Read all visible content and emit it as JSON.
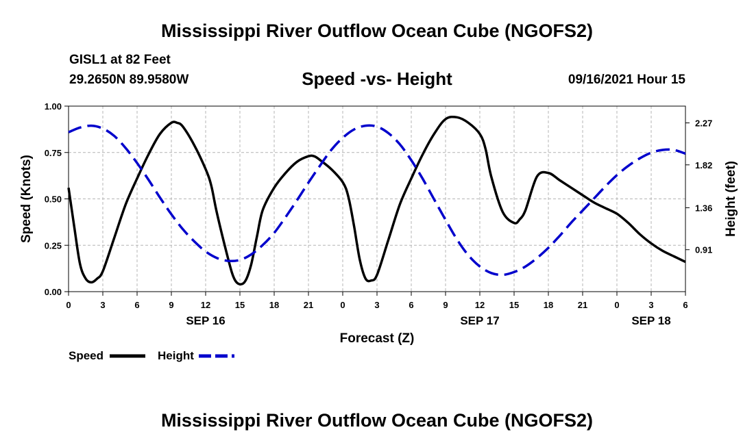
{
  "header": {
    "title": "Mississippi River Outflow Ocean Cube (NGOFS2)",
    "station": "GISL1 at 82 Feet",
    "coords": "29.2650N  89.9580W",
    "chart_title": "Speed -vs- Height",
    "datetime": "09/16/2021 Hour 15"
  },
  "footer": {
    "title": "Mississippi River Outflow Ocean Cube (NGOFS2)"
  },
  "colors": {
    "speed": "#000000",
    "height": "#0000cc",
    "grid": "#b4b4b4"
  },
  "chart_data": {
    "type": "line",
    "title": "Speed -vs- Height",
    "xlabel": "Forecast (Z)",
    "ylabel_left": "Speed (Knots)",
    "ylabel_right": "Height (feet)",
    "x_range_hours": [
      0,
      54
    ],
    "x_ticks": [
      {
        "h": 0,
        "label": "0"
      },
      {
        "h": 3,
        "label": "3"
      },
      {
        "h": 6,
        "label": "6"
      },
      {
        "h": 9,
        "label": "9"
      },
      {
        "h": 12,
        "label": "12"
      },
      {
        "h": 15,
        "label": "15"
      },
      {
        "h": 18,
        "label": "18"
      },
      {
        "h": 21,
        "label": "21"
      },
      {
        "h": 24,
        "label": "0"
      },
      {
        "h": 27,
        "label": "3"
      },
      {
        "h": 30,
        "label": "6"
      },
      {
        "h": 33,
        "label": "9"
      },
      {
        "h": 36,
        "label": "12"
      },
      {
        "h": 39,
        "label": "15"
      },
      {
        "h": 42,
        "label": "18"
      },
      {
        "h": 45,
        "label": "21"
      },
      {
        "h": 48,
        "label": "0"
      },
      {
        "h": 51,
        "label": "3"
      },
      {
        "h": 54,
        "label": "6"
      }
    ],
    "date_labels": [
      {
        "h": 12,
        "label": "SEP 16"
      },
      {
        "h": 36,
        "label": "SEP 17"
      },
      {
        "h": 51,
        "label": "SEP 18"
      }
    ],
    "y_left": {
      "range": [
        0,
        1
      ],
      "ticks": [
        "0.00",
        "0.25",
        "0.50",
        "0.75",
        "1.00"
      ]
    },
    "y_right": {
      "range": [
        0.46,
        2.45
      ],
      "ticks": [
        "0.91",
        "1.36",
        "1.82",
        "2.27"
      ]
    },
    "grid": true,
    "legend": {
      "position": "bottom-left",
      "entries": [
        "Speed",
        "Height"
      ]
    },
    "series": [
      {
        "name": "Speed",
        "axis": "left",
        "style": "solid",
        "hours": [
          0,
          0.5,
          1,
          1.5,
          2,
          2.5,
          3,
          4,
          5,
          6,
          7,
          8,
          9,
          9.5,
          10,
          11,
          12,
          12.5,
          13,
          14,
          14.5,
          15,
          15.5,
          16,
          16.5,
          17,
          18,
          19,
          20,
          21,
          21.5,
          22,
          23,
          24,
          24.5,
          25,
          25.5,
          26,
          26.5,
          27,
          28,
          29,
          30,
          31,
          32,
          33,
          34,
          35,
          36,
          36.5,
          37,
          38,
          39,
          39.5,
          40,
          41,
          42,
          43,
          44,
          45,
          46,
          47,
          48,
          49,
          50,
          51,
          52,
          53,
          54
        ],
        "values": [
          0.56,
          0.35,
          0.15,
          0.07,
          0.05,
          0.07,
          0.11,
          0.29,
          0.47,
          0.61,
          0.74,
          0.85,
          0.91,
          0.91,
          0.89,
          0.79,
          0.66,
          0.57,
          0.42,
          0.17,
          0.07,
          0.04,
          0.06,
          0.15,
          0.3,
          0.44,
          0.56,
          0.64,
          0.7,
          0.73,
          0.73,
          0.71,
          0.66,
          0.59,
          0.51,
          0.35,
          0.17,
          0.07,
          0.06,
          0.09,
          0.28,
          0.47,
          0.61,
          0.74,
          0.85,
          0.93,
          0.94,
          0.91,
          0.85,
          0.77,
          0.62,
          0.43,
          0.37,
          0.39,
          0.44,
          0.62,
          0.64,
          0.6,
          0.56,
          0.52,
          0.48,
          0.45,
          0.42,
          0.37,
          0.31,
          0.26,
          0.22,
          0.19,
          0.16
        ]
      },
      {
        "name": "Height",
        "axis": "right",
        "style": "dashed",
        "hours": [
          0,
          1,
          2,
          3,
          4,
          5,
          6,
          7,
          8,
          9,
          10,
          11,
          12,
          13,
          14,
          15,
          16,
          17,
          18,
          19,
          20,
          21,
          22,
          23,
          24,
          25,
          26,
          27,
          28,
          29,
          30,
          31,
          32,
          33,
          34,
          35,
          36,
          37,
          38,
          39,
          40,
          41,
          42,
          43,
          44,
          45,
          46,
          47,
          48,
          49,
          50,
          51,
          52,
          53,
          54
        ],
        "values": [
          2.17,
          2.22,
          2.24,
          2.21,
          2.13,
          2.0,
          1.84,
          1.66,
          1.47,
          1.29,
          1.13,
          1.0,
          0.89,
          0.82,
          0.79,
          0.8,
          0.86,
          0.96,
          1.09,
          1.26,
          1.44,
          1.63,
          1.81,
          1.98,
          2.11,
          2.2,
          2.24,
          2.23,
          2.16,
          2.04,
          1.87,
          1.67,
          1.45,
          1.23,
          1.02,
          0.85,
          0.73,
          0.66,
          0.64,
          0.67,
          0.73,
          0.82,
          0.93,
          1.06,
          1.2,
          1.33,
          1.46,
          1.59,
          1.71,
          1.81,
          1.89,
          1.95,
          1.98,
          1.98,
          1.94
        ]
      }
    ]
  }
}
